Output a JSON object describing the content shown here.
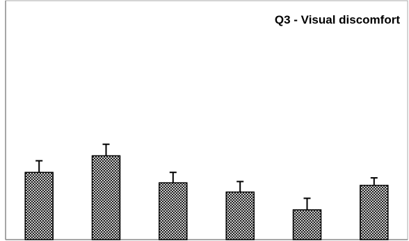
{
  "chart_data": {
    "type": "bar",
    "title": "Q3 - Visual discomfort",
    "xlabel": "",
    "ylabel": "",
    "categories": [
      "",
      "",
      "",
      "",
      "",
      ""
    ],
    "values": [
      3.66,
      4.56,
      3.09,
      2.59,
      1.62,
      2.95
    ],
    "errors": [
      0.63,
      0.63,
      0.57,
      0.57,
      0.63,
      0.41
    ],
    "ylim": [
      0,
      13
    ],
    "grid": false,
    "legend": "none",
    "bar_pattern": "cross-hatch",
    "colors": {
      "bar_outline": "#000000",
      "bar_hatch": "#000000",
      "bar_fill": "#ffffff",
      "axis": "#888888",
      "frame": "#aaaaaa",
      "title": "#000000"
    }
  }
}
